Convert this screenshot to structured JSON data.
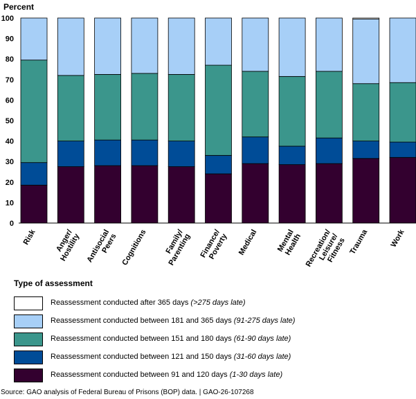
{
  "chart_data": {
    "type": "bar",
    "stacked": true,
    "ylabel": "Percent",
    "ylim": [
      0,
      100
    ],
    "yticks": [
      0,
      10,
      20,
      30,
      40,
      50,
      60,
      70,
      80,
      90,
      100
    ],
    "categories": [
      "Risk",
      "Anger/ Hostility",
      "Antisocial Peers",
      "Cognitions",
      "Family/ Parenting",
      "Finance/ Poverty",
      "Medical",
      "Mental Health",
      "Recreation/ Leisure/ Fitness",
      "Trauma",
      "Work"
    ],
    "series": [
      {
        "name": "Reassessment conducted between 91 and 120 days",
        "late": "(1-30 days late)",
        "color": "#33002f",
        "values": [
          18.5,
          27.5,
          28,
          28,
          27.5,
          24,
          29,
          28.5,
          29,
          31.5,
          32
        ]
      },
      {
        "name": "Reassessment conducted between 121 and 150 days",
        "late": "(31-60 days late)",
        "color": "#004c97",
        "values": [
          11,
          12.5,
          12.5,
          12.5,
          12.5,
          9,
          13,
          9,
          12.5,
          8.5,
          7.5
        ]
      },
      {
        "name": "Reassessment conducted between 151 and 180 days",
        "late": "(61-90 days late)",
        "color": "#3b968c",
        "values": [
          50,
          32,
          32,
          32.5,
          32.5,
          44,
          32,
          34,
          32.5,
          28,
          29
        ]
      },
      {
        "name": "Reassessment conducted between 181 and 365 days",
        "late": "(91-275 days late)",
        "color": "#a7cff7",
        "values": [
          20.5,
          28,
          27.5,
          27,
          27.5,
          23,
          26,
          28.5,
          26,
          31.5,
          31.5
        ]
      },
      {
        "name": "Reassessment conducted after 365 days",
        "late": "(>275 days late)",
        "color": "#ffffff",
        "values": [
          0,
          0,
          0,
          0,
          0,
          0,
          0,
          0,
          0,
          0.5,
          0
        ]
      }
    ],
    "grid": false,
    "legend_title": "Type of assessment",
    "legend_position": "bottom"
  },
  "source": "Source: GAO analysis of Federal Bureau of Prisons (BOP) data.  |  GAO-26-107268"
}
